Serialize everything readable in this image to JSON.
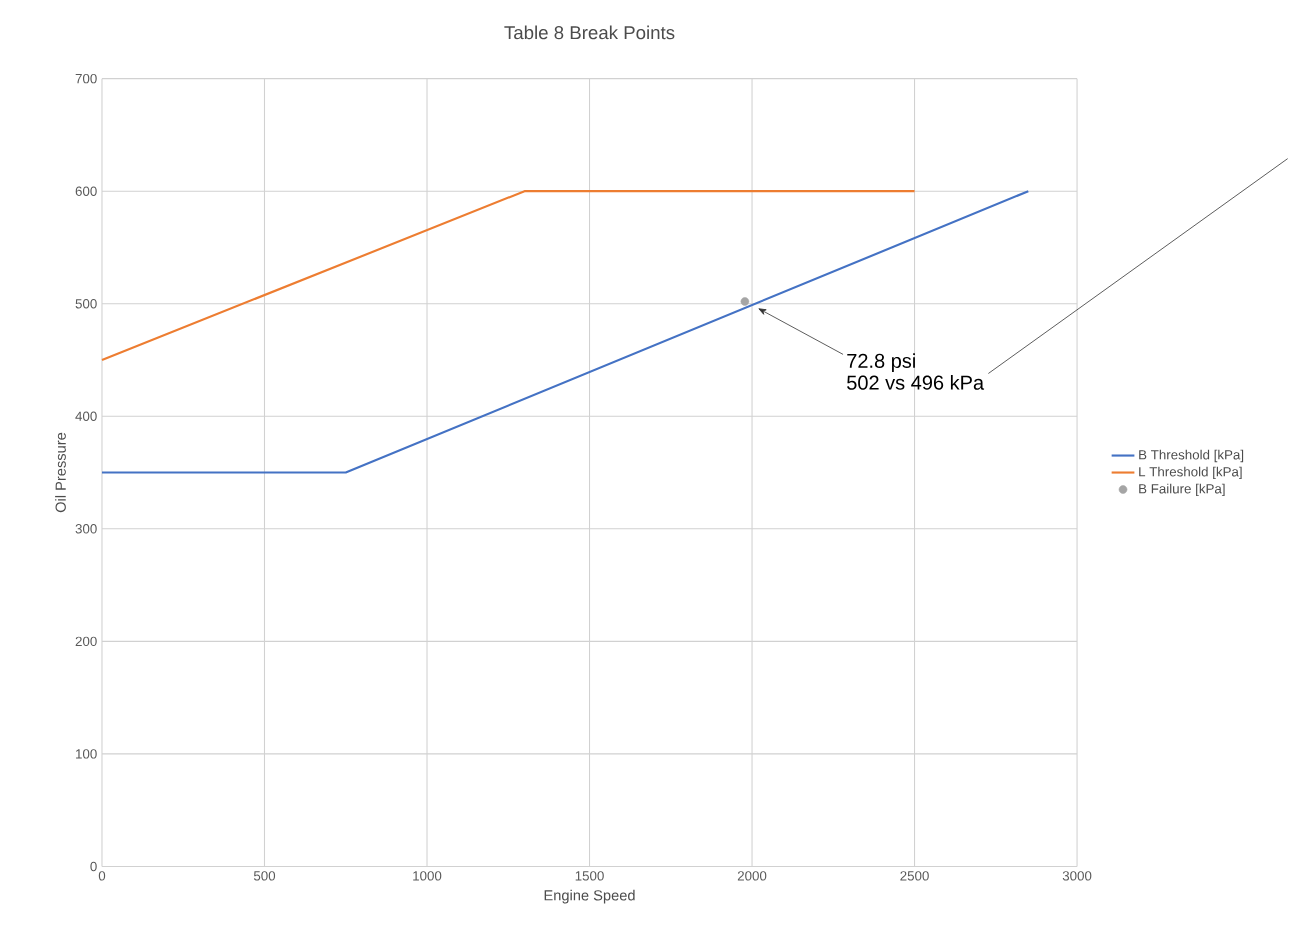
{
  "chart_data": {
    "type": "line",
    "title": "Table 8 Break Points",
    "xlabel": "Engine Speed",
    "ylabel": "Oil Pressure",
    "series": [
      {
        "name": "B Threshold [kPa]",
        "color": "#4472c4",
        "x": [
          0,
          750,
          2850
        ],
        "values": [
          350,
          350,
          600
        ]
      },
      {
        "name": "L Threshold [kPa]",
        "color": "#ed7d31",
        "x": [
          0,
          1300,
          2500
        ],
        "values": [
          450,
          600,
          600
        ]
      },
      {
        "name": "B Failure [kPa]",
        "color": "#a5a5a5",
        "type": "scatter",
        "x": [
          1978
        ],
        "values": [
          502
        ]
      }
    ],
    "annotations": [
      {
        "text": "72.8 psi",
        "x": 2018,
        "y": 496
      },
      "502 vs 496 kPa"
    ],
    "xlim": [
      0,
      3000
    ],
    "ylim": [
      0,
      700
    ],
    "xticks": [
      0,
      500,
      1000,
      1500,
      2000,
      2500,
      3000
    ],
    "yticks": [
      0,
      100,
      200,
      300,
      400,
      500,
      600,
      700
    ],
    "grid": true,
    "legend": "right"
  }
}
